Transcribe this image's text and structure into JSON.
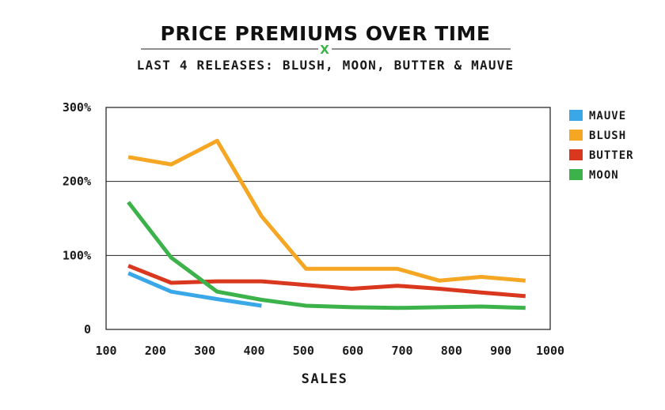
{
  "chart_data": {
    "type": "line",
    "title": "PRICE PREMIUMS OVER TIME",
    "brand_mark": "X",
    "subtitle": "LAST 4 RELEASES: BLUSH, MOON, BUTTER & MAUVE",
    "xlabel": "SALES",
    "ylabel": "",
    "xlim": [
      100,
      1000
    ],
    "ylim": [
      0,
      300
    ],
    "x_ticks": [
      100,
      200,
      300,
      400,
      500,
      600,
      700,
      800,
      900,
      1000
    ],
    "y_ticks": [
      {
        "value": 0,
        "label": "0"
      },
      {
        "value": 100,
        "label": "100%"
      },
      {
        "value": 200,
        "label": "200%"
      },
      {
        "value": 300,
        "label": "300%"
      }
    ],
    "gridlines_y": [
      100,
      200
    ],
    "legend_position": "right",
    "series": [
      {
        "name": "MAUVE",
        "color": "#3aa8e8",
        "x": [
          145,
          232,
          325,
          415
        ],
        "values": [
          76,
          51,
          41,
          32
        ]
      },
      {
        "name": "BLUSH",
        "color": "#f5a623",
        "x": [
          145,
          232,
          325,
          415,
          505,
          598,
          690,
          775,
          860,
          950
        ],
        "values": [
          233,
          223,
          255,
          153,
          82,
          82,
          82,
          66,
          71,
          66
        ]
      },
      {
        "name": "BUTTER",
        "color": "#d9381e",
        "x": [
          145,
          232,
          325,
          415,
          505,
          598,
          690,
          775,
          860,
          950
        ],
        "values": [
          86,
          63,
          65,
          65,
          60,
          55,
          59,
          55,
          50,
          45
        ]
      },
      {
        "name": "MOON",
        "color": "#3cb34a",
        "x": [
          145,
          232,
          325,
          415,
          505,
          598,
          690,
          775,
          860,
          950
        ],
        "values": [
          172,
          97,
          51,
          40,
          32,
          30,
          29,
          30,
          31,
          29
        ]
      }
    ]
  }
}
